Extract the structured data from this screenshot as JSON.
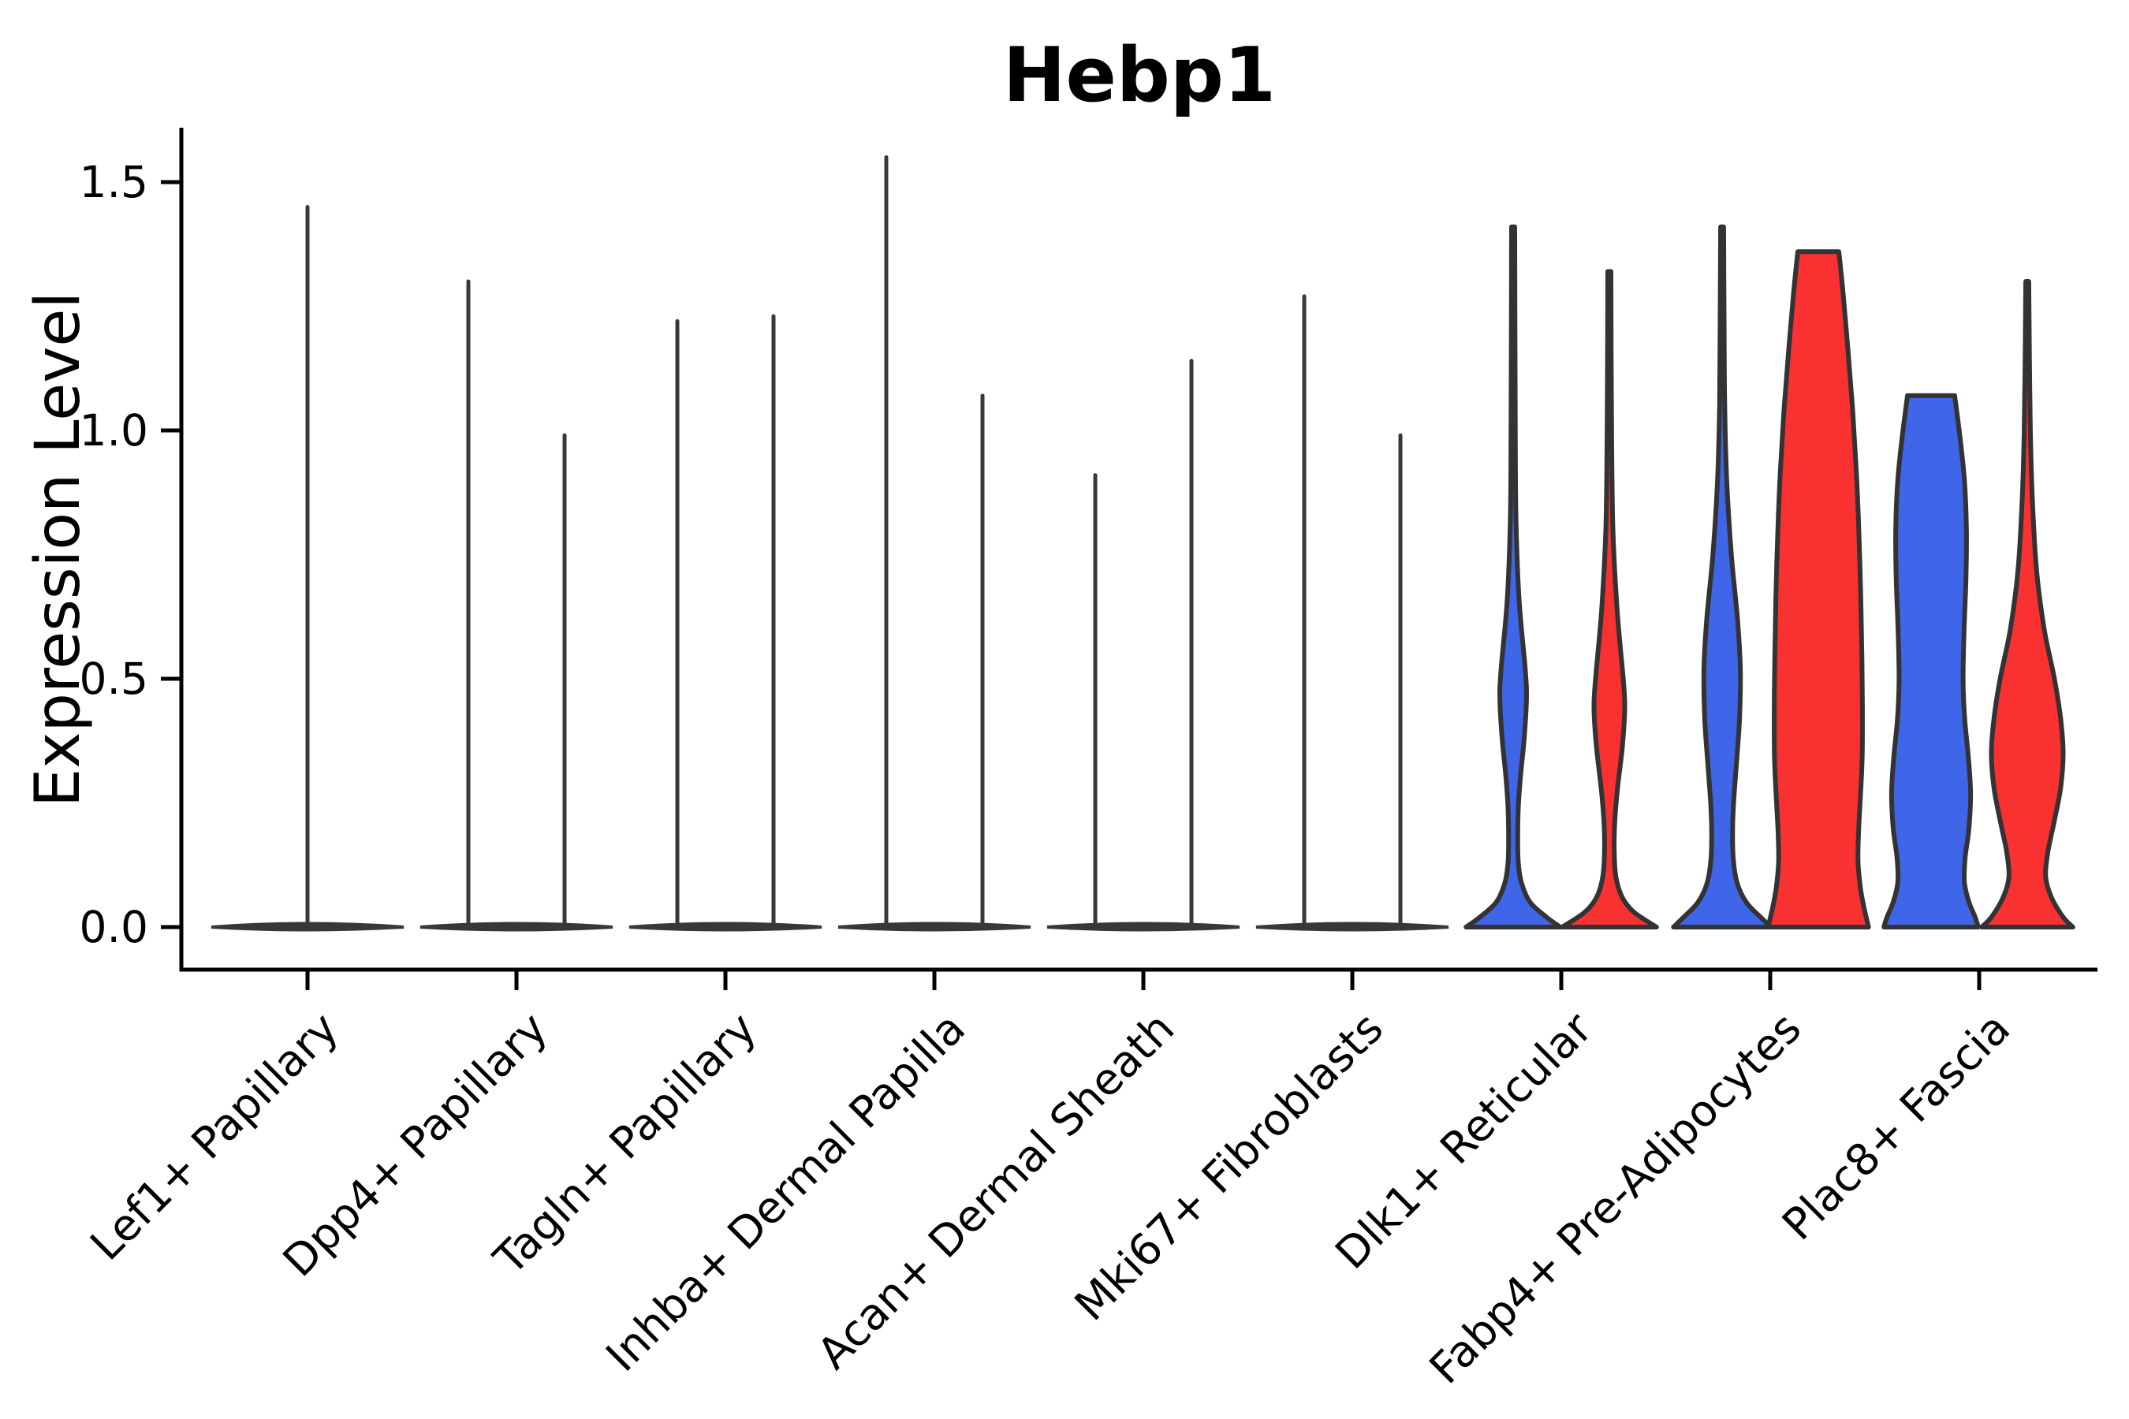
{
  "chart_data": {
    "type": "violin",
    "title": "Hebp1",
    "ylabel": "Expression Level",
    "xlabel": "",
    "ytick_labels": [
      "0.0",
      "0.5",
      "1.0",
      "1.5"
    ],
    "ytick_values": [
      0.0,
      0.5,
      1.0,
      1.5
    ],
    "ylim": [
      -0.09,
      1.61
    ],
    "grid": "off",
    "legend": "none",
    "colors": {
      "group_blue": "#3F66E8",
      "group_red": "#F93131",
      "outline": "#333333",
      "spike": "#383838",
      "ink": "#000000"
    },
    "categories": [
      "Lef1+ Papillary",
      "Dpp4+ Papillary",
      "Tagln+ Papillary",
      "Inhba+ Dermal Papilla",
      "Acan+ Dermal Sheath",
      "Mki67+ Fibroblasts",
      "Dlk1+ Reticular",
      "Fabp4+ Pre-Adipocytes",
      "Plac8+ Fascia"
    ],
    "violins": [
      {
        "category": "Lef1+ Papillary",
        "band": true,
        "elements": [
          {
            "kind": "spike",
            "pos": 0,
            "top": 1.45
          }
        ]
      },
      {
        "category": "Dpp4+ Papillary",
        "band": true,
        "elements": [
          {
            "kind": "spike",
            "pos": -1,
            "top": 1.3
          },
          {
            "kind": "spike",
            "pos": 1,
            "top": 0.99
          }
        ]
      },
      {
        "category": "Tagln+ Papillary",
        "band": true,
        "elements": [
          {
            "kind": "spike",
            "pos": -1,
            "top": 1.22
          },
          {
            "kind": "spike",
            "pos": 1,
            "top": 1.23
          }
        ]
      },
      {
        "category": "Inhba+ Dermal Papilla",
        "band": true,
        "elements": [
          {
            "kind": "spike",
            "pos": -1,
            "top": 1.55
          },
          {
            "kind": "spike",
            "pos": 1,
            "top": 1.07
          }
        ]
      },
      {
        "category": "Acan+ Dermal Sheath",
        "band": true,
        "elements": [
          {
            "kind": "spike",
            "pos": -1,
            "top": 0.91
          },
          {
            "kind": "spike",
            "pos": 1,
            "top": 1.14
          }
        ]
      },
      {
        "category": "Mki67+ Fibroblasts",
        "band": true,
        "elements": [
          {
            "kind": "spike",
            "pos": -1,
            "top": 1.27
          },
          {
            "kind": "spike",
            "pos": 1,
            "top": 0.99
          }
        ]
      },
      {
        "category": "Dlk1+ Reticular",
        "band": false,
        "elements": [
          {
            "kind": "violin",
            "pos": -1,
            "group": "group_blue",
            "top": 1.41,
            "profile": [
              [
                1.41,
                0.03
              ],
              [
                1.2,
                0.036
              ],
              [
                1.0,
                0.042
              ],
              [
                0.82,
                0.055
              ],
              [
                0.66,
                0.115
              ],
              [
                0.52,
                0.235
              ],
              [
                0.46,
                0.26
              ],
              [
                0.38,
                0.215
              ],
              [
                0.3,
                0.14
              ],
              [
                0.24,
                0.1
              ],
              [
                0.18,
                0.09
              ],
              [
                0.13,
                0.1
              ],
              [
                0.09,
                0.16
              ],
              [
                0.05,
                0.33
              ],
              [
                0.02,
                0.65
              ],
              [
                0.0,
                0.92
              ]
            ]
          },
          {
            "kind": "violin",
            "pos": 1,
            "group": "group_red",
            "top": 1.32,
            "profile": [
              [
                1.32,
                0.03
              ],
              [
                1.15,
                0.036
              ],
              [
                0.98,
                0.045
              ],
              [
                0.8,
                0.07
              ],
              [
                0.64,
                0.15
              ],
              [
                0.5,
                0.27
              ],
              [
                0.44,
                0.3
              ],
              [
                0.36,
                0.25
              ],
              [
                0.28,
                0.16
              ],
              [
                0.21,
                0.105
              ],
              [
                0.15,
                0.095
              ],
              [
                0.1,
                0.13
              ],
              [
                0.06,
                0.25
              ],
              [
                0.03,
                0.48
              ],
              [
                0.0,
                0.92
              ]
            ]
          }
        ]
      },
      {
        "category": "Fabp4+ Pre-Adipocytes",
        "band": false,
        "elements": [
          {
            "kind": "violin",
            "pos": -1,
            "group": "group_blue",
            "top": 1.41,
            "profile": [
              [
                1.41,
                0.03
              ],
              [
                1.22,
                0.038
              ],
              [
                1.05,
                0.05
              ],
              [
                0.9,
                0.09
              ],
              [
                0.75,
                0.18
              ],
              [
                0.62,
                0.3
              ],
              [
                0.52,
                0.355
              ],
              [
                0.42,
                0.34
              ],
              [
                0.33,
                0.28
              ],
              [
                0.26,
                0.23
              ],
              [
                0.2,
                0.205
              ],
              [
                0.14,
                0.215
              ],
              [
                0.09,
                0.29
              ],
              [
                0.05,
                0.47
              ],
              [
                0.02,
                0.75
              ],
              [
                0.0,
                0.95
              ]
            ]
          },
          {
            "kind": "violin",
            "pos": 1,
            "group": "group_red",
            "top": 1.36,
            "profile": [
              [
                1.36,
                0.4
              ],
              [
                1.28,
                0.48
              ],
              [
                1.16,
                0.58
              ],
              [
                1.04,
                0.67
              ],
              [
                0.92,
                0.74
              ],
              [
                0.8,
                0.79
              ],
              [
                0.66,
                0.83
              ],
              [
                0.54,
                0.85
              ],
              [
                0.44,
                0.86
              ],
              [
                0.34,
                0.855
              ],
              [
                0.26,
                0.82
              ],
              [
                0.19,
                0.785
              ],
              [
                0.13,
                0.775
              ],
              [
                0.08,
                0.82
              ],
              [
                0.04,
                0.89
              ],
              [
                0.0,
                0.98
              ]
            ]
          }
        ]
      },
      {
        "category": "Plac8+ Fascia",
        "band": false,
        "elements": [
          {
            "kind": "violin",
            "pos": -1,
            "group": "group_blue",
            "top": 1.07,
            "profile": [
              [
                1.07,
                0.46
              ],
              [
                0.99,
                0.56
              ],
              [
                0.9,
                0.65
              ],
              [
                0.8,
                0.69
              ],
              [
                0.7,
                0.68
              ],
              [
                0.6,
                0.645
              ],
              [
                0.5,
                0.625
              ],
              [
                0.42,
                0.655
              ],
              [
                0.34,
                0.73
              ],
              [
                0.27,
                0.77
              ],
              [
                0.2,
                0.74
              ],
              [
                0.14,
                0.665
              ],
              [
                0.09,
                0.65
              ],
              [
                0.05,
                0.74
              ],
              [
                0.02,
                0.86
              ],
              [
                0.0,
                0.92
              ]
            ]
          },
          {
            "kind": "violin",
            "pos": 1,
            "group": "group_red",
            "top": 1.3,
            "profile": [
              [
                1.3,
                0.03
              ],
              [
                1.15,
                0.042
              ],
              [
                1.0,
                0.06
              ],
              [
                0.86,
                0.1
              ],
              [
                0.72,
                0.18
              ],
              [
                0.6,
                0.33
              ],
              [
                0.5,
                0.53
              ],
              [
                0.42,
                0.65
              ],
              [
                0.35,
                0.7
              ],
              [
                0.28,
                0.65
              ],
              [
                0.21,
                0.52
              ],
              [
                0.15,
                0.4
              ],
              [
                0.1,
                0.36
              ],
              [
                0.06,
                0.47
              ],
              [
                0.02,
                0.7
              ],
              [
                0.0,
                0.89
              ]
            ]
          }
        ]
      }
    ]
  }
}
